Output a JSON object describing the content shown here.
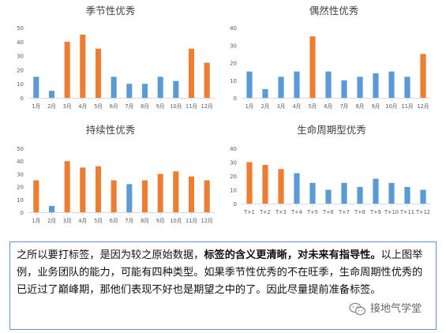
{
  "chart_data": [
    {
      "type": "bar",
      "title": "季节性优秀",
      "categories": [
        "1月",
        "2月",
        "3月",
        "4月",
        "5月",
        "6月",
        "7月",
        "8月",
        "9月",
        "10月",
        "11月",
        "12月"
      ],
      "values": [
        15,
        5,
        40,
        45,
        35,
        15,
        10,
        10,
        15,
        12,
        35,
        25
      ],
      "highlight": [
        false,
        false,
        true,
        true,
        true,
        false,
        false,
        false,
        false,
        false,
        true,
        true
      ],
      "ylim": [
        0,
        50
      ],
      "yticks": [
        0,
        10,
        20,
        30,
        40,
        50
      ],
      "grid": false
    },
    {
      "type": "bar",
      "title": "偶然性优秀",
      "categories": [
        "1月",
        "2月",
        "3月",
        "4月",
        "5月",
        "6月",
        "7月",
        "8月",
        "9月",
        "10月",
        "11月",
        "12月"
      ],
      "values": [
        15,
        5,
        12,
        15,
        35,
        15,
        10,
        12,
        14,
        15,
        12,
        25
      ],
      "highlight": [
        false,
        false,
        false,
        false,
        true,
        false,
        false,
        false,
        false,
        false,
        false,
        true
      ],
      "ylim": [
        0,
        40
      ],
      "yticks": [
        0,
        10,
        20,
        30,
        40
      ],
      "grid": false
    },
    {
      "type": "bar",
      "title": "持续性优秀",
      "categories": [
        "1月",
        "2月",
        "3月",
        "4月",
        "5月",
        "6月",
        "7月",
        "8月",
        "9月",
        "10月",
        "11月",
        "12月"
      ],
      "values": [
        25,
        5,
        40,
        35,
        36,
        25,
        22,
        25,
        30,
        32,
        28,
        25
      ],
      "highlight": [
        true,
        false,
        true,
        true,
        true,
        true,
        false,
        true,
        true,
        true,
        true,
        true
      ],
      "ylim": [
        0,
        50
      ],
      "yticks": [
        0,
        10,
        20,
        30,
        40,
        50
      ],
      "grid": false
    },
    {
      "type": "bar",
      "title": "生命周期型优秀",
      "categories": [
        "T+1",
        "T+2",
        "T+3",
        "T+4",
        "T+5",
        "T+6",
        "T+7",
        "T+8",
        "T+9",
        "T+10",
        "T+11",
        "T+12"
      ],
      "values": [
        30,
        28,
        25,
        22,
        15,
        10,
        15,
        12,
        18,
        15,
        12,
        10
      ],
      "highlight": [
        true,
        true,
        true,
        false,
        false,
        false,
        false,
        false,
        false,
        false,
        false,
        false
      ],
      "ylim": [
        0,
        40
      ],
      "yticks": [
        0,
        10,
        20,
        30,
        40
      ],
      "grid": false
    }
  ],
  "colors": {
    "highlight": "#ed7d31",
    "normal": "#5b9bd5",
    "axis": "#d9d9d9",
    "tick_text": "#595959",
    "title_text": "#404040",
    "caption_border": "#6b8fc9"
  },
  "caption": {
    "part1": "之所以要打标签，是因为较之原始数据，",
    "bold": "标签的含义更清晰，对未来有指导性。",
    "part2": "以上图举例，业务团队的能力，可能有四种类型。如果季节性优秀的不在旺季，生命周期性优秀的已近过了巅峰期，那他们表现不好也是期望之中的了。因此尽量提前准备标签。"
  },
  "watermark": {
    "icon": "wechat-icon",
    "text": "接地气学堂"
  }
}
